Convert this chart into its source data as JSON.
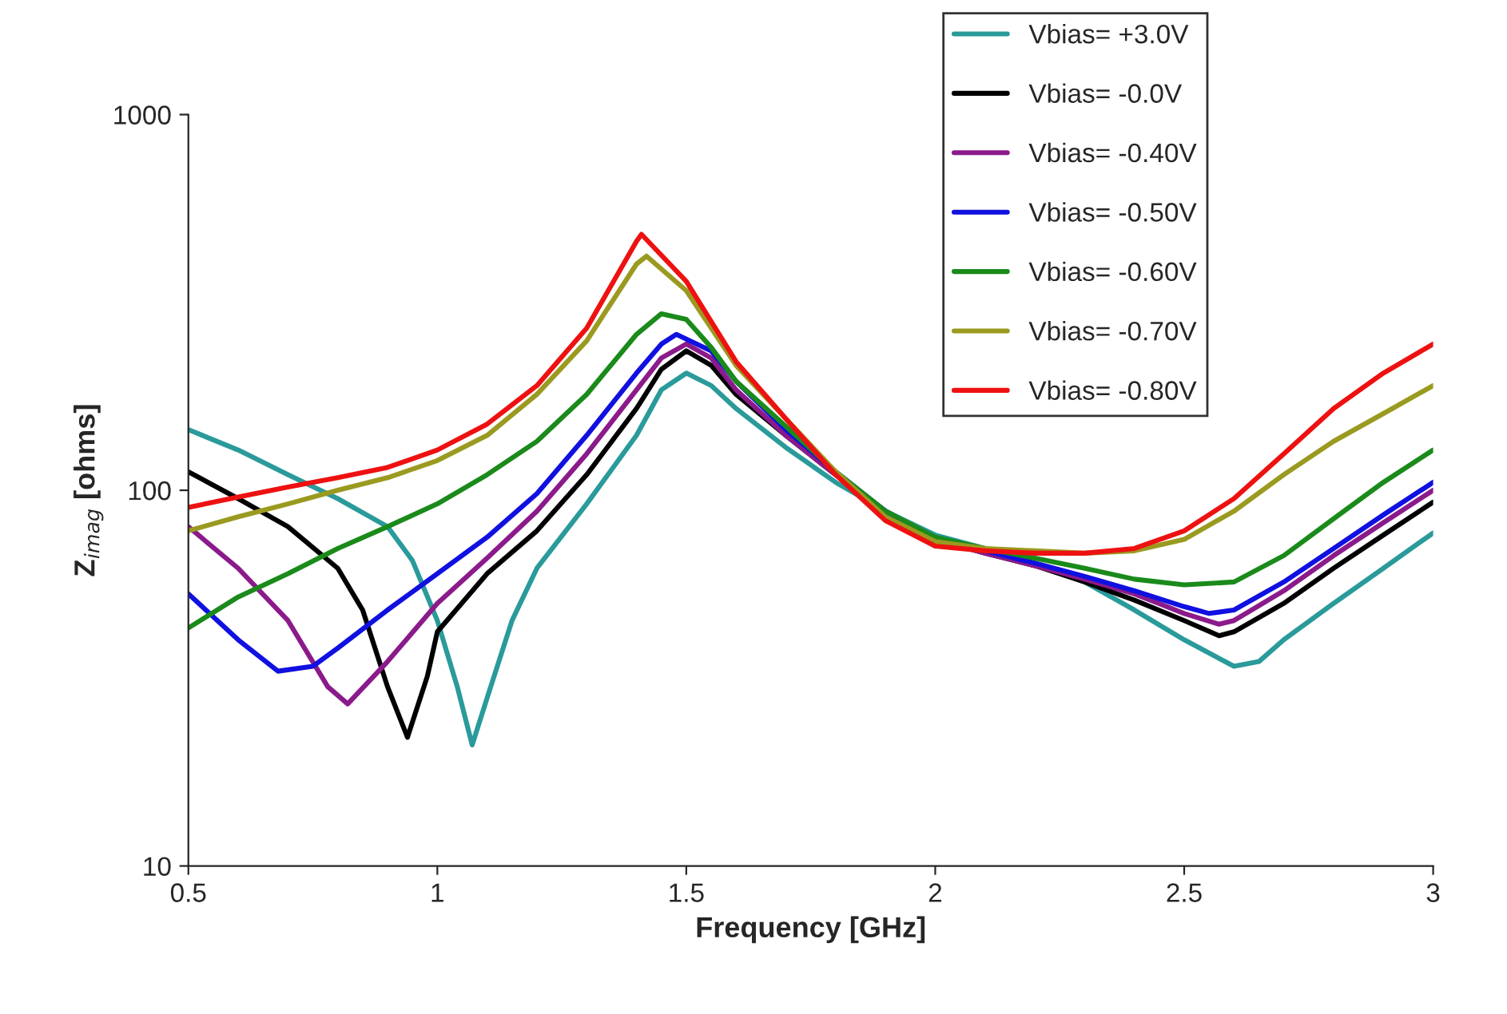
{
  "chart_data": {
    "type": "line",
    "xlabel": "Frequency [GHz]",
    "ylabel": "Z$_{imag}$ [ohms]",
    "xlim": [
      0.5,
      3
    ],
    "xticks": [
      0.5,
      1,
      1.5,
      2,
      2.5,
      3
    ],
    "ylim": [
      10,
      1000
    ],
    "yticks": [
      10,
      100,
      1000
    ],
    "log": "y",
    "grid": false,
    "legend": "top right",
    "marker": "none",
    "line_style": "solid",
    "series": [
      {
        "name": "Vbias= +3.0V",
        "color": "#2a9a9a",
        "x": [
          0.5,
          0.6,
          0.7,
          0.8,
          0.9,
          0.95,
          1.0,
          1.04,
          1.07,
          1.1,
          1.15,
          1.2,
          1.3,
          1.4,
          1.45,
          1.5,
          1.55,
          1.6,
          1.7,
          1.8,
          1.9,
          2.0,
          2.1,
          2.2,
          2.3,
          2.4,
          2.5,
          2.6,
          2.65,
          2.7,
          2.8,
          2.9,
          3.0
        ],
        "values": [
          145,
          128,
          110,
          95,
          80,
          65,
          45,
          30,
          21,
          28,
          45,
          62,
          92,
          140,
          185,
          205,
          190,
          165,
          130,
          105,
          88,
          76,
          70,
          64,
          57,
          48,
          40,
          34,
          35,
          40,
          50,
          62,
          77
        ]
      },
      {
        "name": "Vbias= -0.0V",
        "color": "#000000",
        "x": [
          0.5,
          0.6,
          0.7,
          0.8,
          0.85,
          0.9,
          0.94,
          0.98,
          1.0,
          1.1,
          1.2,
          1.3,
          1.4,
          1.45,
          1.5,
          1.55,
          1.6,
          1.7,
          1.8,
          1.9,
          2.0,
          2.1,
          2.2,
          2.3,
          2.4,
          2.5,
          2.57,
          2.6,
          2.7,
          2.8,
          2.9,
          3.0
        ],
        "values": [
          112,
          95,
          80,
          62,
          48,
          30,
          22,
          32,
          42,
          60,
          78,
          110,
          165,
          210,
          235,
          215,
          180,
          140,
          110,
          88,
          74,
          68,
          63,
          57,
          51,
          45,
          41,
          42,
          50,
          62,
          76,
          93
        ]
      },
      {
        "name": "Vbias= -0.40V",
        "color": "#8b1a8b",
        "x": [
          0.5,
          0.6,
          0.7,
          0.78,
          0.82,
          0.9,
          1.0,
          1.1,
          1.2,
          1.3,
          1.4,
          1.45,
          1.5,
          1.55,
          1.6,
          1.7,
          1.8,
          1.9,
          2.0,
          2.1,
          2.2,
          2.3,
          2.4,
          2.5,
          2.57,
          2.6,
          2.7,
          2.8,
          2.9,
          3.0
        ],
        "values": [
          80,
          62,
          45,
          30,
          27,
          35,
          50,
          66,
          88,
          125,
          185,
          225,
          245,
          225,
          185,
          140,
          110,
          88,
          74,
          68,
          63,
          58,
          53,
          47,
          44,
          45,
          54,
          67,
          82,
          100
        ]
      },
      {
        "name": "Vbias= -0.50V",
        "color": "#1010e0",
        "x": [
          0.5,
          0.6,
          0.68,
          0.75,
          0.8,
          0.9,
          1.0,
          1.1,
          1.2,
          1.3,
          1.4,
          1.45,
          1.48,
          1.55,
          1.6,
          1.7,
          1.8,
          1.9,
          2.0,
          2.1,
          2.2,
          2.3,
          2.4,
          2.5,
          2.55,
          2.6,
          2.7,
          2.8,
          2.9,
          3.0
        ],
        "values": [
          53,
          40,
          33,
          34,
          38,
          48,
          60,
          75,
          98,
          140,
          205,
          245,
          260,
          235,
          195,
          145,
          112,
          88,
          74,
          69,
          64,
          59,
          54,
          49,
          47,
          48,
          57,
          70,
          86,
          105
        ]
      },
      {
        "name": "Vbias= -0.60V",
        "color": "#1a8a1a",
        "x": [
          0.5,
          0.6,
          0.7,
          0.8,
          0.9,
          1.0,
          1.1,
          1.2,
          1.3,
          1.4,
          1.45,
          1.5,
          1.55,
          1.6,
          1.7,
          1.8,
          1.9,
          2.0,
          2.1,
          2.2,
          2.3,
          2.4,
          2.5,
          2.6,
          2.7,
          2.8,
          2.9,
          3.0
        ],
        "values": [
          43,
          52,
          60,
          70,
          80,
          92,
          110,
          135,
          180,
          260,
          295,
          285,
          240,
          195,
          148,
          112,
          88,
          75,
          70,
          66,
          62,
          58,
          56,
          57,
          67,
          84,
          105,
          128
        ]
      },
      {
        "name": "Vbias= -0.70V",
        "color": "#9a9a20",
        "x": [
          0.5,
          0.6,
          0.7,
          0.8,
          0.9,
          1.0,
          1.1,
          1.2,
          1.3,
          1.4,
          1.42,
          1.5,
          1.6,
          1.7,
          1.8,
          1.9,
          2.0,
          2.1,
          2.2,
          2.3,
          2.4,
          2.5,
          2.6,
          2.7,
          2.8,
          2.9,
          3.0
        ],
        "values": [
          78,
          85,
          92,
          100,
          108,
          120,
          140,
          180,
          250,
          400,
          420,
          340,
          215,
          155,
          112,
          85,
          73,
          70,
          69,
          68,
          69,
          74,
          88,
          110,
          135,
          160,
          190
        ]
      },
      {
        "name": "Vbias= -0.80V",
        "color": "#ee1111",
        "x": [
          0.5,
          0.6,
          0.7,
          0.8,
          0.9,
          1.0,
          1.1,
          1.2,
          1.3,
          1.4,
          1.41,
          1.5,
          1.6,
          1.7,
          1.8,
          1.9,
          2.0,
          2.1,
          2.2,
          2.3,
          2.4,
          2.5,
          2.6,
          2.7,
          2.8,
          2.9,
          3.0
        ],
        "values": [
          90,
          96,
          102,
          108,
          115,
          128,
          150,
          190,
          270,
          460,
          480,
          360,
          220,
          155,
          110,
          83,
          71,
          69,
          68,
          68,
          70,
          78,
          95,
          125,
          165,
          205,
          245
        ]
      }
    ]
  }
}
